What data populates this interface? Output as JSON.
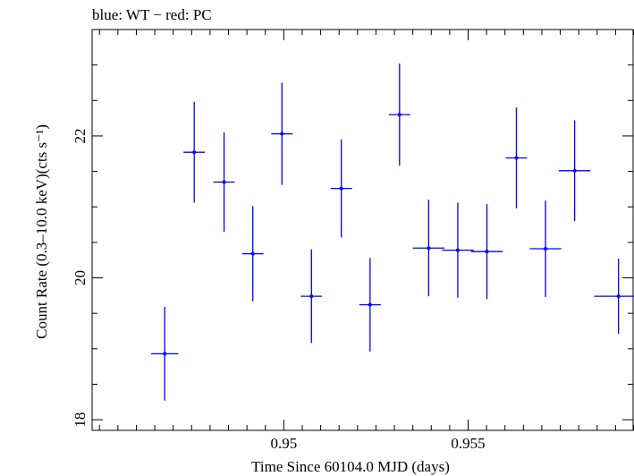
{
  "chart_data": {
    "type": "scatter",
    "title": "blue: WT − red: PC",
    "xlabel": "Time Since 60104.0 MJD (days)",
    "ylabel": "Count Rate (0.3–10.0 keV)(cts s⁻¹)",
    "xlim": [
      0.9448,
      0.9595
    ],
    "ylim": [
      17.85,
      23.5
    ],
    "x_ticks": [
      {
        "value": 0.95,
        "label": "0.95"
      },
      {
        "value": 0.955,
        "label": "0.955"
      }
    ],
    "y_ticks": [
      {
        "value": 18,
        "label": "18"
      },
      {
        "value": 20,
        "label": "20"
      },
      {
        "value": 22,
        "label": "22"
      }
    ],
    "grid": false,
    "series": [
      {
        "color": "#0000ff",
        "points": [
          {
            "x": 0.94677,
            "xerr": 0.00037,
            "y": 18.93,
            "yerr": 0.66
          },
          {
            "x": 0.94757,
            "xerr": 0.00029,
            "y": 21.77,
            "yerr": 0.71
          },
          {
            "x": 0.94838,
            "xerr": 0.00029,
            "y": 21.35,
            "yerr": 0.7
          },
          {
            "x": 0.94916,
            "xerr": 0.00029,
            "y": 20.34,
            "yerr": 0.67
          },
          {
            "x": 0.94995,
            "xerr": 0.00029,
            "y": 22.03,
            "yerr": 0.72
          },
          {
            "x": 0.95075,
            "xerr": 0.00029,
            "y": 19.74,
            "yerr": 0.66
          },
          {
            "x": 0.95156,
            "xerr": 0.00029,
            "y": 21.26,
            "yerr": 0.69
          },
          {
            "x": 0.95234,
            "xerr": 0.00029,
            "y": 19.62,
            "yerr": 0.66
          },
          {
            "x": 0.95314,
            "xerr": 0.00029,
            "y": 22.3,
            "yerr": 0.72
          },
          {
            "x": 0.95393,
            "xerr": 0.00043,
            "y": 20.42,
            "yerr": 0.68
          },
          {
            "x": 0.95472,
            "xerr": 0.00043,
            "y": 20.39,
            "yerr": 0.67
          },
          {
            "x": 0.95551,
            "xerr": 0.00043,
            "y": 20.37,
            "yerr": 0.67
          },
          {
            "x": 0.95631,
            "xerr": 0.00029,
            "y": 21.69,
            "yerr": 0.71
          },
          {
            "x": 0.9571,
            "xerr": 0.00043,
            "y": 20.41,
            "yerr": 0.68
          },
          {
            "x": 0.95789,
            "xerr": 0.00043,
            "y": 21.51,
            "yerr": 0.71
          },
          {
            "x": 0.95908,
            "xerr": 0.00066,
            "y": 19.74,
            "yerr": 0.53
          }
        ]
      }
    ]
  }
}
